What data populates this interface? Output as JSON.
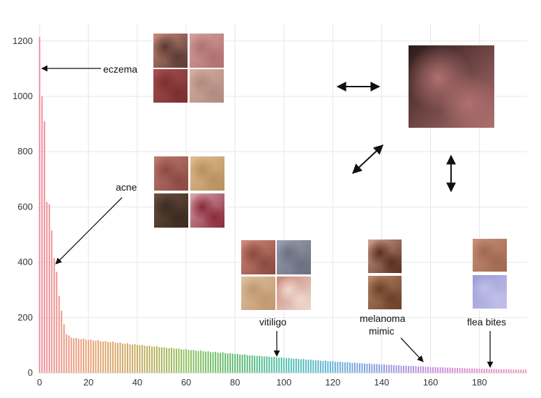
{
  "chart_data": {
    "type": "bar",
    "x_ticks": [
      0,
      20,
      40,
      60,
      80,
      100,
      120,
      140,
      160,
      180
    ],
    "y_ticks": [
      0,
      200,
      400,
      600,
      800,
      1000,
      1200
    ],
    "xlim": [
      -0.5,
      199.5
    ],
    "ylim": [
      0,
      1260
    ],
    "grid": true,
    "head_values": [
      1215,
      1000,
      910,
      618,
      610,
      515,
      415,
      365,
      278,
      225,
      175,
      140,
      135,
      128,
      125
    ],
    "tail_start_value": 124,
    "tail_end_value": 12,
    "count": 200,
    "annotations": [
      {
        "id": "eczema",
        "text": "eczema",
        "x": 0,
        "y": 1095
      },
      {
        "id": "acne",
        "text": "acne",
        "x": 6,
        "y": 390
      },
      {
        "id": "vitiligo",
        "text": "vitiligo",
        "x": 98,
        "y": 50
      },
      {
        "id": "melanoma",
        "text": "melanoma\nmimic",
        "x": 160,
        "y": 18
      },
      {
        "id": "flea",
        "text": "flea bites",
        "x": 186,
        "y": 14
      }
    ]
  },
  "colors": {
    "gradient": [
      "#f08ca0",
      "#e9a070",
      "#c9a85a",
      "#8ebf5a",
      "#5ab86a",
      "#4cbfa8",
      "#5ab0d8",
      "#8a9ae0",
      "#c48ae0",
      "#e88ad0",
      "#f090b8"
    ],
    "grid": "#e6e6e6",
    "arrow": "#111111"
  },
  "images": [
    {
      "name": "eczema-thumb-1",
      "palette": [
        "#c98a7a",
        "#5a3a34"
      ]
    },
    {
      "name": "eczema-thumb-2",
      "palette": [
        "#d6a0a0",
        "#b07070"
      ]
    },
    {
      "name": "eczema-thumb-3",
      "palette": [
        "#a85050",
        "#7a3030"
      ]
    },
    {
      "name": "eczema-thumb-4",
      "palette": [
        "#d8b0a0",
        "#b08a80"
      ]
    },
    {
      "name": "acne-thumb-1",
      "palette": [
        "#c07a70",
        "#8a4a44"
      ]
    },
    {
      "name": "acne-thumb-2",
      "palette": [
        "#e0c090",
        "#b89060"
      ]
    },
    {
      "name": "acne-thumb-3",
      "palette": [
        "#6a5040",
        "#3a2a20"
      ]
    },
    {
      "name": "acne-thumb-4",
      "palette": [
        "#d8a8b0",
        "#8a2a3a"
      ]
    },
    {
      "name": "neck-rash-photo",
      "palette": [
        "#2a1a18",
        "#b07070"
      ]
    },
    {
      "name": "vitiligo-thumb-1",
      "palette": [
        "#d08a78",
        "#8a4a40"
      ]
    },
    {
      "name": "vitiligo-thumb-2",
      "palette": [
        "#9aa0b0",
        "#6a7080"
      ]
    },
    {
      "name": "vitiligo-thumb-3",
      "palette": [
        "#e0c0a0",
        "#c09870"
      ]
    },
    {
      "name": "vitiligo-thumb-4",
      "palette": [
        "#c88878",
        "#f0d8d0"
      ]
    },
    {
      "name": "melanoma-thumb-1",
      "palette": [
        "#d0a090",
        "#5a3020"
      ]
    },
    {
      "name": "melanoma-thumb-2",
      "palette": [
        "#b88868",
        "#6a4028"
      ]
    },
    {
      "name": "flea-thumb-1",
      "palette": [
        "#c89078",
        "#a06850"
      ]
    },
    {
      "name": "flea-thumb-2",
      "palette": [
        "#9a9ad8",
        "#c0c0e8"
      ]
    }
  ]
}
